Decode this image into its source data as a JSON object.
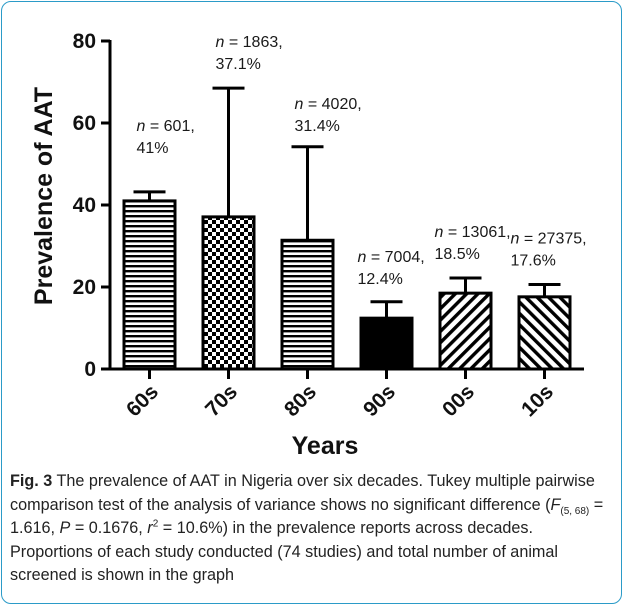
{
  "chart_data": {
    "type": "bar",
    "xlabel": "Years",
    "ylabel": "Prevalence of AAT",
    "ylim": [
      0,
      80
    ],
    "yticks": [
      0,
      20,
      40,
      60,
      80
    ],
    "categories": [
      "60s",
      "70s",
      "80s",
      "90s",
      "00s",
      "10s"
    ],
    "values": [
      41,
      37.1,
      31.4,
      12.4,
      18.5,
      17.6
    ],
    "error_upper": [
      43.2,
      68.5,
      54.2,
      16.4,
      22.2,
      20.6
    ],
    "patterns": [
      "horizontal-lines",
      "checkerboard",
      "horizontal-lines",
      "solid-black",
      "diagonal-lines",
      "diagonal-lines-back"
    ],
    "annotations": [
      {
        "n_label": "n",
        "n_value": "601",
        "pct": "41%"
      },
      {
        "n_label": "n",
        "n_value": "1863",
        "pct": "37.1%"
      },
      {
        "n_label": "n",
        "n_value": "4020",
        "pct": "31.4%"
      },
      {
        "n_label": "n",
        "n_value": "7004",
        "pct": "12.4%"
      },
      {
        "n_label": "n",
        "n_value": "13061",
        "pct": "18.5%"
      },
      {
        "n_label": "n",
        "n_value": "27375",
        "pct": "17.6%"
      }
    ],
    "grid": false,
    "legend": "none"
  },
  "caption": {
    "label": "Fig. 3",
    "text1": " The prevalence of AAT in Nigeria over six decades. Tukey multiple pairwise comparison test of the analysis of variance shows no significant difference (",
    "F": "F",
    "F_sub": "(5, 68)",
    "F_val": " = 1.616, ",
    "P": "P",
    "P_val": " = 0.1676, ",
    "r": "r",
    "r_sup": "2",
    "r_val": " = 10.6%) in the prevalence reports across decades. Proportions of each study conducted (74 studies) and total number of animal screened is shown in the graph"
  }
}
